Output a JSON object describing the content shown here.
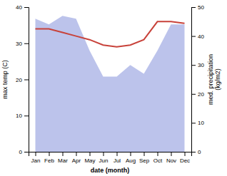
{
  "chart_data": {
    "type": "line",
    "categories": [
      "Jan",
      "Feb",
      "Mar",
      "Apr",
      "May",
      "Jun",
      "Jul",
      "Aug",
      "Sep",
      "Oct",
      "Nov",
      "Dec"
    ],
    "xlabel": "date (month)",
    "ylabel": "max temp (C)",
    "y2label": "med. precipitation\n(kg/m2)",
    "series": [
      {
        "type": "area",
        "axis": "y2",
        "color": "#b0b8e8",
        "values": [
          46,
          44,
          47,
          46,
          35,
          26,
          26,
          30,
          27,
          35,
          44,
          44
        ]
      },
      {
        "type": "line",
        "color": "#c8423a",
        "values": [
          34,
          34,
          33,
          32,
          31,
          29.5,
          29,
          29.5,
          31,
          36,
          36,
          35.5
        ]
      }
    ],
    "ylim": [
      0,
      40
    ],
    "yticks": [
      0,
      10,
      20,
      30,
      40
    ],
    "y2lim": [
      0,
      50
    ],
    "y2ticks": [
      0,
      10,
      20,
      30,
      40,
      50
    ]
  }
}
